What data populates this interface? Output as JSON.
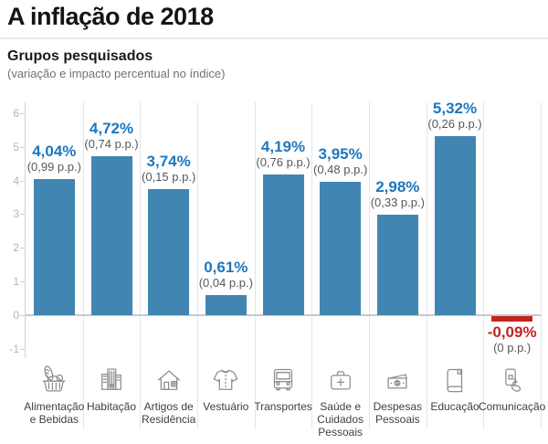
{
  "header": {
    "title": "A inflação de 2018",
    "subtitle": "Grupos pesquisados",
    "subtitle_note": "(variação e impacto percentual no índice)"
  },
  "chart_data": {
    "type": "bar",
    "title": "Grupos pesquisados",
    "subtitle": "(variação e impacto percentual no índice)",
    "ylabel": "",
    "xlabel": "",
    "ylim": [
      -1,
      6
    ],
    "yticks": [
      6,
      5,
      4,
      3,
      2,
      1,
      0,
      -1
    ],
    "grid": "column-separators",
    "legend": "none",
    "categories": [
      "Alimentação e Bebidas",
      "Habitação",
      "Artigos de Residência",
      "Vestuário",
      "Transportes",
      "Saúde e Cuidados Pessoais",
      "Despesas Pessoais",
      "Educação",
      "Comunicação"
    ],
    "category_lines": [
      "Alimentação\ne Bebidas",
      "Habitação",
      "Artigos de\nResidência",
      "Vestuário",
      "Transportes",
      "Saúde e\nCuidados\nPessoais",
      "Despesas\nPessoais",
      "Educação",
      "Comunicação"
    ],
    "values": [
      4.04,
      4.72,
      3.74,
      0.61,
      4.19,
      3.95,
      2.98,
      5.32,
      -0.09
    ],
    "value_labels": [
      "4,04%",
      "4,72%",
      "3,74%",
      "0,61%",
      "4,19%",
      "3,95%",
      "2,98%",
      "5,32%",
      "-0,09%"
    ],
    "impact_labels": [
      "(0,99 p.p.)",
      "(0,74 p.p.)",
      "(0,15 p.p.)",
      "(0,04 p.p.)",
      "(0,76 p.p.)",
      "(0,48 p.p.)",
      "(0,33 p.p.)",
      "(0,26 p.p.)",
      "(0 p.p.)"
    ],
    "icons": [
      "food-basket-icon",
      "buildings-icon",
      "house-icon",
      "shirt-icon",
      "bus-icon",
      "first-aid-icon",
      "money-icon",
      "book-icon",
      "phone-hand-icon"
    ],
    "colors": {
      "bar_positive": "#4186b2",
      "bar_negative": "#c32421",
      "value_text_positive": "#1f77bd",
      "value_text_negative": "#c32421",
      "impact_text": "#55575a",
      "axis_text": "#b3b5b7",
      "icon_stroke": "#8b8e90"
    }
  }
}
